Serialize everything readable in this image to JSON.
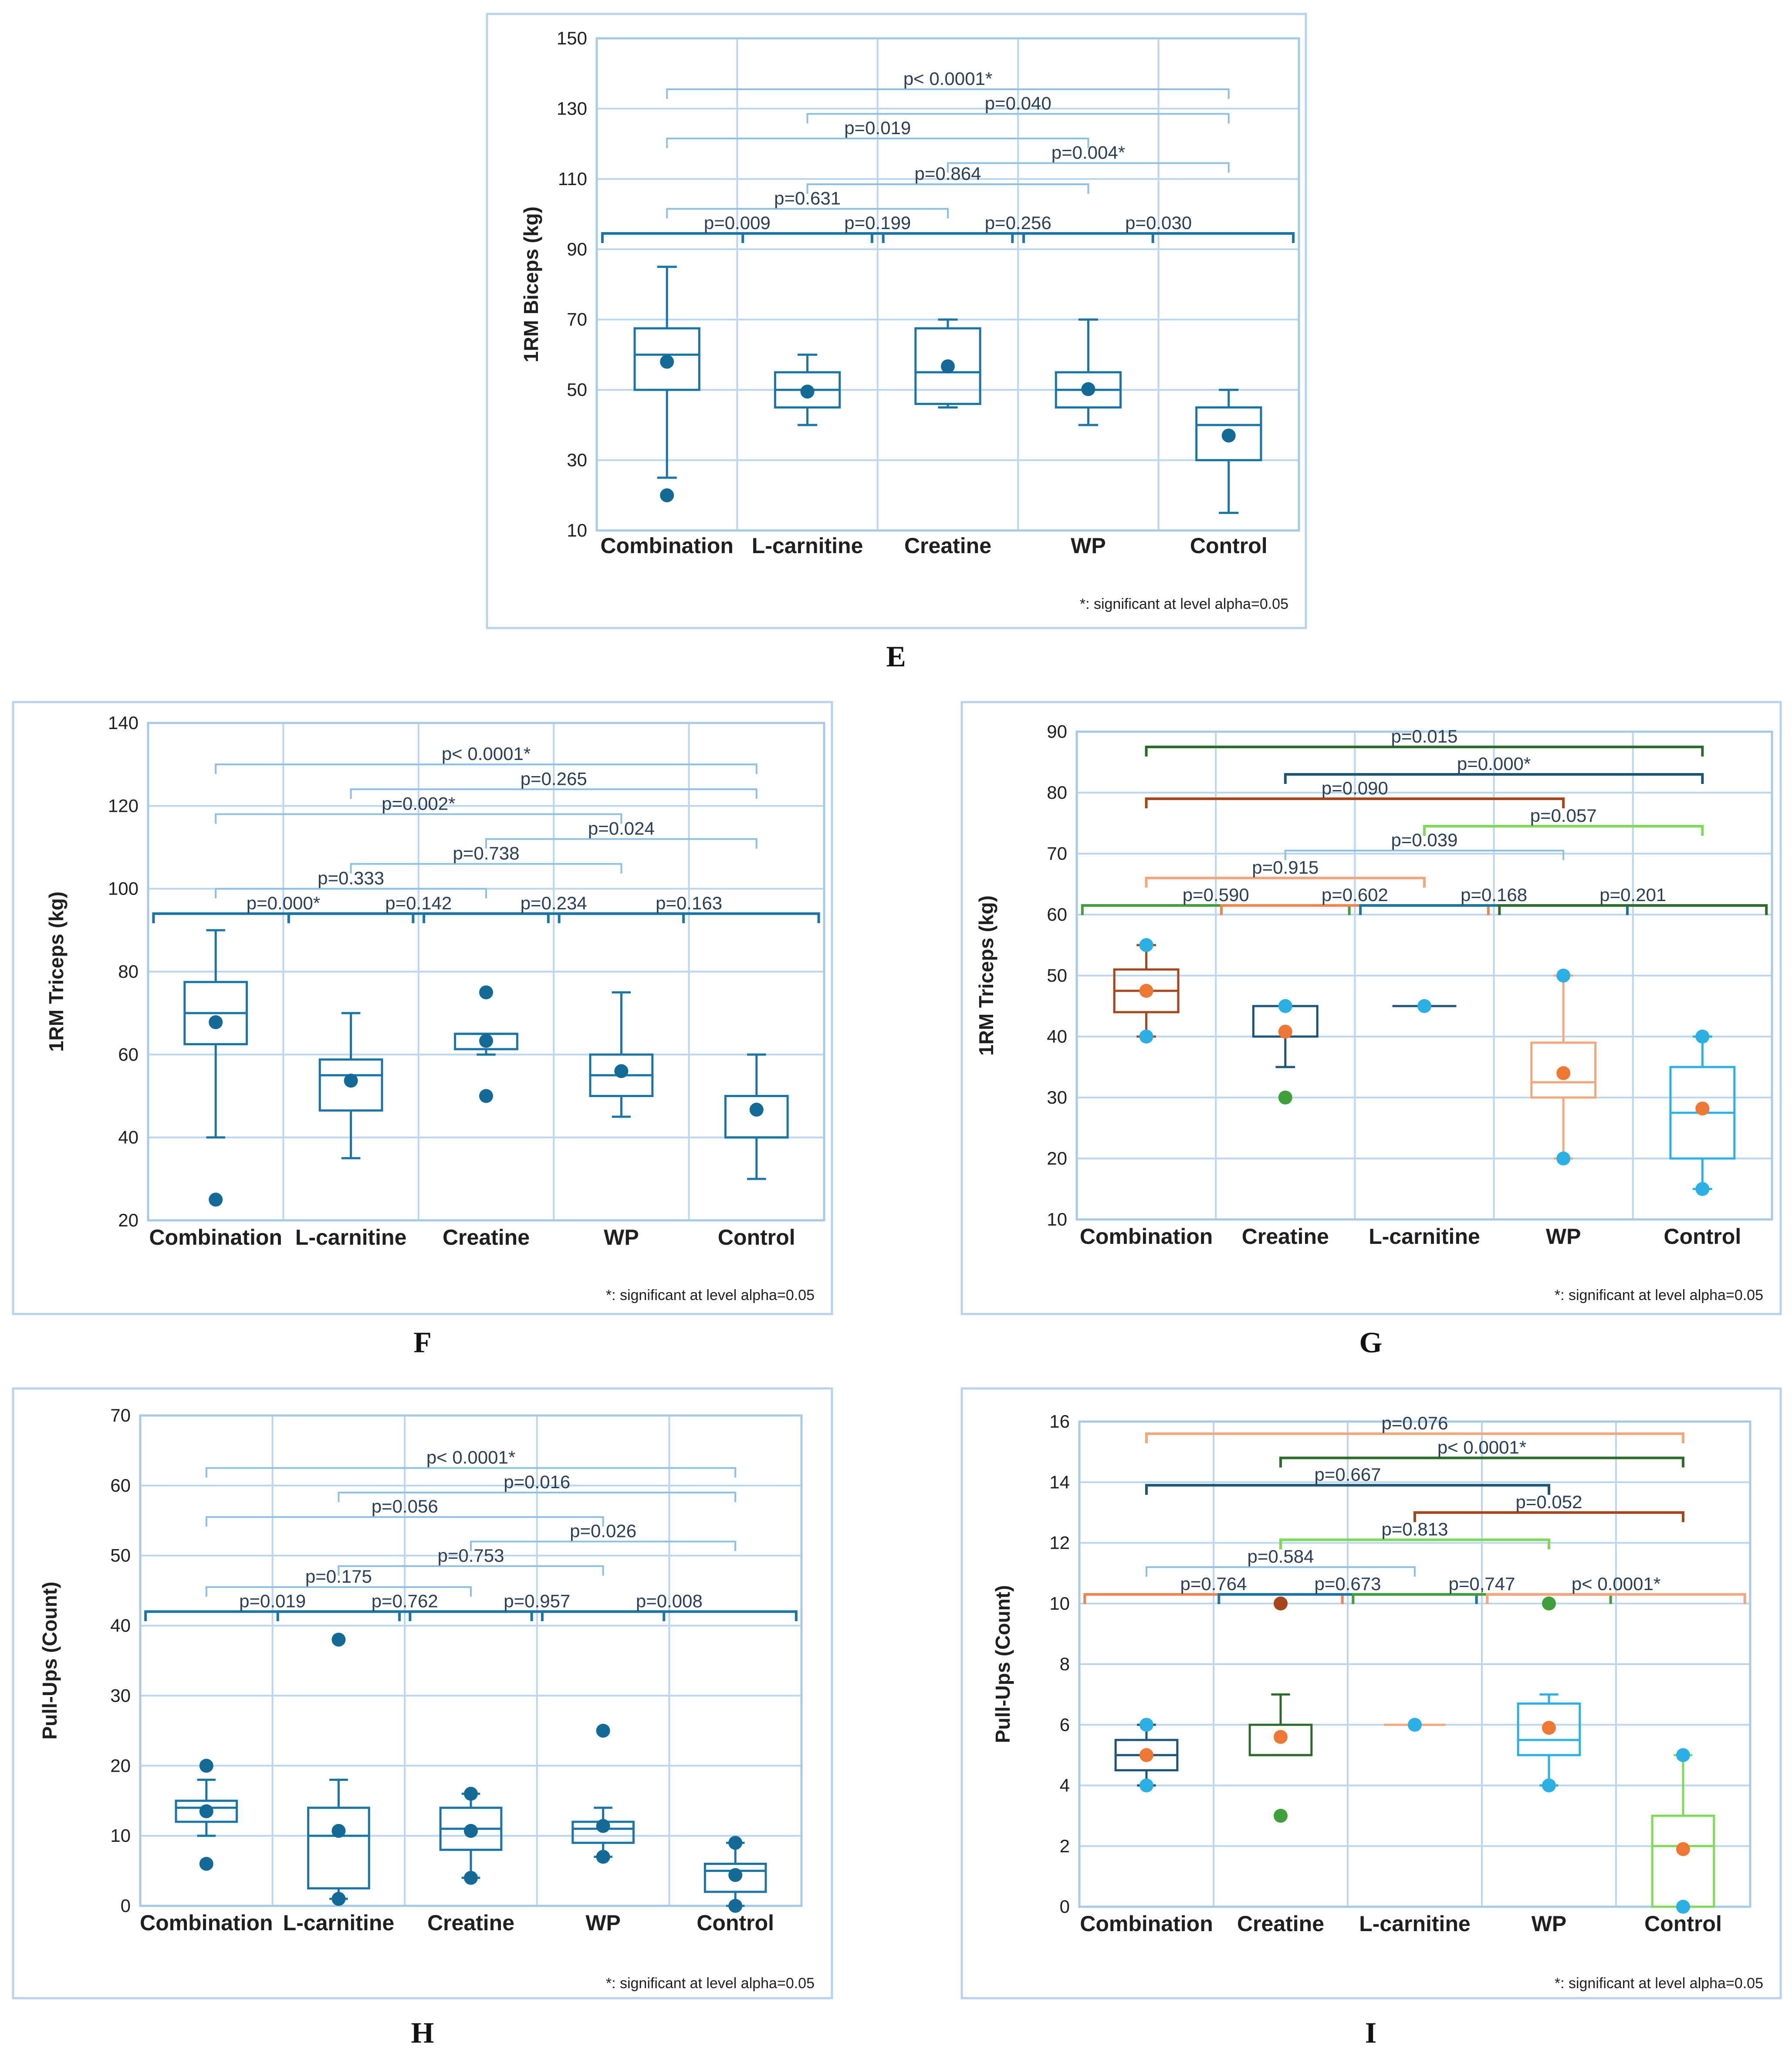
{
  "note": "*: significant at level alpha=0.05",
  "colors": {
    "teal": "#1a74a6",
    "teal_dot": "#146a96",
    "light_blue": "#8cc0e4",
    "dark_navy": "#1c5577",
    "brown": "#a64519",
    "orange": "#f0834c",
    "light_orange": "#f4a77c",
    "cyan": "#2bb0e6",
    "green": "#3f9f3a",
    "dark_green": "#2d6b2a",
    "lime": "#7ed957",
    "dot_orange": "#ee7733"
  },
  "chart_data": [
    {
      "id": "E",
      "type": "box",
      "panel_label": "E",
      "ylabel": "1RM Biceps (kg)",
      "ylim": [
        10,
        150
      ],
      "yticks": [
        10,
        30,
        50,
        70,
        90,
        110,
        130,
        150
      ],
      "categories": [
        "Combination",
        "L-carnitine",
        "Creatine",
        "WP",
        "Control"
      ],
      "boxes": [
        {
          "q1": 50,
          "median": 60,
          "q3": 67.5,
          "whisker_low": 25,
          "whisker_high": 85,
          "mean": 58,
          "outliers": [
            20
          ],
          "color": "teal"
        },
        {
          "q1": 45,
          "median": 50,
          "q3": 55,
          "whisker_low": 40,
          "whisker_high": 60,
          "mean": 49.5,
          "outliers": [],
          "color": "teal"
        },
        {
          "q1": 46,
          "median": 55,
          "q3": 67.5,
          "whisker_low": 45,
          "whisker_high": 70,
          "mean": 56.7,
          "outliers": [],
          "color": "teal"
        },
        {
          "q1": 45,
          "median": 50,
          "q3": 55,
          "whisker_low": 40,
          "whisker_high": 70,
          "mean": 50.2,
          "outliers": [],
          "color": "teal"
        },
        {
          "q1": 30,
          "median": 40,
          "q3": 45,
          "whisker_low": 15,
          "whisker_high": 50,
          "mean": 37,
          "outliers": [],
          "color": "teal"
        }
      ],
      "comparisons": [
        {
          "from": 0,
          "to": 1,
          "level": 94.5,
          "label": "p=0.009",
          "color": "teal"
        },
        {
          "from": 1,
          "to": 2,
          "level": 94.5,
          "label": "p=0.199",
          "color": "teal"
        },
        {
          "from": 2,
          "to": 3,
          "level": 94.5,
          "label": "p=0.256",
          "color": "teal"
        },
        {
          "from": 3,
          "to": 4,
          "level": 94.5,
          "label": "p=0.030",
          "color": "teal"
        },
        {
          "from": 0,
          "to": 2,
          "level": 101.5,
          "label": "p=0.631",
          "color": "light_blue"
        },
        {
          "from": 1,
          "to": 3,
          "level": 108.5,
          "label": "p=0.864",
          "color": "light_blue"
        },
        {
          "from": 2,
          "to": 4,
          "level": 114.5,
          "label": "p=0.004*",
          "color": "light_blue"
        },
        {
          "from": 0,
          "to": 3,
          "level": 121.5,
          "label": "p=0.019",
          "color": "light_blue"
        },
        {
          "from": 1,
          "to": 4,
          "level": 128.5,
          "label": "p=0.040",
          "color": "light_blue"
        },
        {
          "from": 0,
          "to": 4,
          "level": 135.5,
          "label": "p< 0.0001*",
          "color": "light_blue"
        }
      ]
    },
    {
      "id": "F",
      "type": "box",
      "panel_label": "F",
      "ylabel": "1RM Triceps (kg)",
      "ylim": [
        20,
        140
      ],
      "yticks": [
        20,
        40,
        60,
        80,
        100,
        120,
        140
      ],
      "categories": [
        "Combination",
        "L-carnitine",
        "Creatine",
        "WP",
        "Control"
      ],
      "boxes": [
        {
          "q1": 62.5,
          "median": 70,
          "q3": 77.5,
          "whisker_low": 40,
          "whisker_high": 90,
          "mean": 67.8,
          "outliers": [
            25
          ],
          "color": "teal"
        },
        {
          "q1": 46.5,
          "median": 55,
          "q3": 58.8,
          "whisker_low": 35,
          "whisker_high": 70,
          "mean": 53.7,
          "outliers": [],
          "color": "teal"
        },
        {
          "q1": 61.3,
          "median": 65,
          "q3": 65,
          "whisker_low": 60,
          "whisker_high": 65,
          "mean": 63.3,
          "outliers": [
            75,
            50
          ],
          "color": "teal"
        },
        {
          "q1": 50,
          "median": 55,
          "q3": 60,
          "whisker_low": 45,
          "whisker_high": 75,
          "mean": 56,
          "outliers": [],
          "color": "teal"
        },
        {
          "q1": 40,
          "median": 40,
          "q3": 50,
          "whisker_low": 30,
          "whisker_high": 60,
          "mean": 46.7,
          "outliers": [],
          "color": "teal"
        }
      ],
      "comparisons": [
        {
          "from": 0,
          "to": 1,
          "level": 94,
          "label": "p=0.000*",
          "color": "teal"
        },
        {
          "from": 1,
          "to": 2,
          "level": 94,
          "label": "p=0.142",
          "color": "teal"
        },
        {
          "from": 2,
          "to": 3,
          "level": 94,
          "label": "p=0.234",
          "color": "teal"
        },
        {
          "from": 3,
          "to": 4,
          "level": 94,
          "label": "p=0.163",
          "color": "teal"
        },
        {
          "from": 0,
          "to": 2,
          "level": 100,
          "label": "p=0.333",
          "color": "light_blue"
        },
        {
          "from": 1,
          "to": 3,
          "level": 106,
          "label": "p=0.738",
          "color": "light_blue"
        },
        {
          "from": 2,
          "to": 4,
          "level": 112,
          "label": "p=0.024",
          "color": "light_blue"
        },
        {
          "from": 0,
          "to": 3,
          "level": 118,
          "label": "p=0.002*",
          "color": "light_blue"
        },
        {
          "from": 1,
          "to": 4,
          "level": 124,
          "label": "p=0.265",
          "color": "light_blue"
        },
        {
          "from": 0,
          "to": 4,
          "level": 130,
          "label": "p< 0.0001*",
          "color": "light_blue"
        }
      ]
    },
    {
      "id": "G",
      "type": "box",
      "panel_label": "G",
      "ylabel": "1RM Triceps (kg)",
      "ylim": [
        10,
        90
      ],
      "yticks": [
        10,
        20,
        30,
        40,
        50,
        60,
        70,
        80,
        90
      ],
      "categories": [
        "Combination",
        "Creatine",
        "L-carnitine",
        "WP",
        "Control"
      ],
      "boxes": [
        {
          "q1": 44,
          "median": 47.5,
          "q3": 51,
          "whisker_low": 40,
          "whisker_high": 55,
          "mean": 47.5,
          "outliers": [
            40,
            55
          ],
          "color": "brown",
          "mean_color": "dot_orange",
          "outlier_color": "cyan"
        },
        {
          "q1": 40,
          "median": 40,
          "q3": 45,
          "whisker_low": 35,
          "whisker_high": 45,
          "mean": 40.8,
          "outliers": [
            45
          ],
          "low_outlier": 30,
          "color": "dark_navy",
          "mean_color": "dot_orange",
          "outlier_color": "cyan",
          "low_outlier_color": "green"
        },
        {
          "q1": 45,
          "median": 45,
          "q3": 45,
          "whisker_low": 45,
          "whisker_high": 45,
          "mean": 45,
          "outliers": [],
          "color": "dark_navy",
          "mean_color": "cyan",
          "outlier_color": "cyan"
        },
        {
          "q1": 30,
          "median": 32.5,
          "q3": 39,
          "whisker_low": 20,
          "whisker_high": 50,
          "mean": 34,
          "outliers": [
            20,
            50
          ],
          "color": "light_orange",
          "mean_color": "dot_orange",
          "outlier_color": "cyan"
        },
        {
          "q1": 20,
          "median": 27.5,
          "q3": 35,
          "whisker_low": 15,
          "whisker_high": 40,
          "mean": 28.2,
          "outliers": [
            15,
            40
          ],
          "color": "cyan",
          "mean_color": "dot_orange",
          "outlier_color": "cyan"
        }
      ],
      "comparisons": [
        {
          "from": 0,
          "to": 1,
          "level": 61.5,
          "label": "p=0.590",
          "color": "green"
        },
        {
          "from": 1,
          "to": 2,
          "level": 61.5,
          "label": "p=0.602",
          "color": "orange"
        },
        {
          "from": 2,
          "to": 3,
          "level": 61.5,
          "label": "p=0.168",
          "color": "teal"
        },
        {
          "from": 3,
          "to": 4,
          "level": 61.5,
          "label": "p=0.201",
          "color": "dark_green"
        },
        {
          "from": 0,
          "to": 2,
          "level": 66,
          "label": "p=0.915",
          "color": "light_orange"
        },
        {
          "from": 1,
          "to": 3,
          "level": 70.5,
          "label": "p=0.039",
          "color": "light_blue"
        },
        {
          "from": 2,
          "to": 4,
          "level": 74.5,
          "label": "p=0.057",
          "color": "lime"
        },
        {
          "from": 0,
          "to": 3,
          "level": 79,
          "label": "p=0.090",
          "color": "brown"
        },
        {
          "from": 1,
          "to": 4,
          "level": 83,
          "label": "p=0.000*",
          "color": "dark_navy"
        },
        {
          "from": 0,
          "to": 4,
          "level": 87.5,
          "label": "p=0.015",
          "color": "dark_green"
        }
      ]
    },
    {
      "id": "H",
      "type": "box",
      "panel_label": "H",
      "ylabel": "Pull-Ups (Count)",
      "ylim": [
        0,
        70
      ],
      "yticks": [
        0,
        10,
        20,
        30,
        40,
        50,
        60,
        70
      ],
      "categories": [
        "Combination",
        "L-carnitine",
        "Creatine",
        "WP",
        "Control"
      ],
      "boxes": [
        {
          "q1": 12,
          "median": 14,
          "q3": 15,
          "whisker_low": 10,
          "whisker_high": 18,
          "mean": 13.5,
          "outliers": [
            20,
            6
          ],
          "color": "teal"
        },
        {
          "q1": 2.5,
          "median": 10,
          "q3": 14,
          "whisker_low": 1,
          "whisker_high": 18,
          "mean": 10.7,
          "outliers": [
            38,
            1
          ],
          "color": "teal"
        },
        {
          "q1": 8,
          "median": 11,
          "q3": 14,
          "whisker_low": 4,
          "whisker_high": 16,
          "mean": 10.7,
          "outliers": [
            16,
            4
          ],
          "color": "teal"
        },
        {
          "q1": 9,
          "median": 11,
          "q3": 12,
          "whisker_low": 7,
          "whisker_high": 14,
          "mean": 11.4,
          "outliers": [
            25,
            7
          ],
          "color": "teal"
        },
        {
          "q1": 2,
          "median": 5,
          "q3": 6,
          "whisker_low": 0,
          "whisker_high": 9,
          "mean": 4.4,
          "outliers": [
            9,
            0
          ],
          "color": "teal"
        }
      ],
      "comparisons": [
        {
          "from": 0,
          "to": 1,
          "level": 42,
          "label": "p=0.019",
          "color": "teal"
        },
        {
          "from": 1,
          "to": 2,
          "level": 42,
          "label": "p=0.762",
          "color": "teal"
        },
        {
          "from": 2,
          "to": 3,
          "level": 42,
          "label": "p=0.957",
          "color": "teal"
        },
        {
          "from": 3,
          "to": 4,
          "level": 42,
          "label": "p=0.008",
          "color": "teal"
        },
        {
          "from": 0,
          "to": 2,
          "level": 45.5,
          "label": "p=0.175",
          "color": "light_blue"
        },
        {
          "from": 1,
          "to": 3,
          "level": 48.5,
          "label": "p=0.753",
          "color": "light_blue"
        },
        {
          "from": 2,
          "to": 4,
          "level": 52,
          "label": "p=0.026",
          "color": "light_blue"
        },
        {
          "from": 0,
          "to": 3,
          "level": 55.5,
          "label": "p=0.056",
          "color": "light_blue"
        },
        {
          "from": 1,
          "to": 4,
          "level": 59,
          "label": "p=0.016",
          "color": "light_blue"
        },
        {
          "from": 0,
          "to": 4,
          "level": 62.5,
          "label": "p< 0.0001*",
          "color": "light_blue"
        }
      ]
    },
    {
      "id": "I",
      "type": "box",
      "panel_label": "I",
      "ylabel": "Pull-Ups (Count)",
      "ylim": [
        0,
        16
      ],
      "yticks": [
        0,
        2,
        4,
        6,
        8,
        10,
        12,
        14,
        16
      ],
      "categories": [
        "Combination",
        "Creatine",
        "L-carnitine",
        "WP",
        "Control"
      ],
      "boxes": [
        {
          "q1": 4.5,
          "median": 5,
          "q3": 5.5,
          "whisker_low": 4,
          "whisker_high": 6,
          "mean": 5,
          "outliers": [
            4,
            6
          ],
          "color": "dark_navy",
          "mean_color": "dot_orange",
          "outlier_color": "cyan"
        },
        {
          "q1": 5,
          "median": 5,
          "q3": 6,
          "whisker_low": 5,
          "whisker_high": 7,
          "mean": 5.6,
          "outliers": [
            10
          ],
          "low_outlier": 3,
          "color": "dark_green",
          "mean_color": "dot_orange",
          "outlier_color": "brown",
          "low_outlier_color": "green"
        },
        {
          "q1": 6,
          "median": 6,
          "q3": 6,
          "whisker_low": 6,
          "whisker_high": 6,
          "mean": 6,
          "outliers": [],
          "color": "light_orange",
          "mean_color": "cyan",
          "outlier_color": "cyan"
        },
        {
          "q1": 5,
          "median": 5.5,
          "q3": 6.7,
          "whisker_low": 4,
          "whisker_high": 7,
          "mean": 5.9,
          "outliers": [
            4
          ],
          "high_outlier": 10,
          "color": "cyan",
          "mean_color": "dot_orange",
          "outlier_color": "cyan",
          "high_outlier_color": "green"
        },
        {
          "q1": 0,
          "median": 2,
          "q3": 3,
          "whisker_low": 0,
          "whisker_high": 5,
          "mean": 1.9,
          "outliers": [
            0,
            5
          ],
          "color": "lime",
          "mean_color": "dot_orange",
          "outlier_color": "cyan"
        }
      ],
      "comparisons": [
        {
          "from": 0,
          "to": 1,
          "level": 10.3,
          "label": "p=0.764",
          "color": "orange"
        },
        {
          "from": 1,
          "to": 2,
          "level": 10.3,
          "label": "p=0.673",
          "color": "teal"
        },
        {
          "from": 2,
          "to": 3,
          "level": 10.3,
          "label": "p=0,747",
          "color": "green"
        },
        {
          "from": 3,
          "to": 4,
          "level": 10.3,
          "label": "p< 0.0001*",
          "color": "light_orange"
        },
        {
          "from": 0,
          "to": 2,
          "level": 11.2,
          "label": "p=0.584",
          "color": "light_blue"
        },
        {
          "from": 1,
          "to": 3,
          "level": 12.1,
          "label": "p=0.813",
          "color": "lime"
        },
        {
          "from": 2,
          "to": 4,
          "level": 13,
          "label": "p=0.052",
          "color": "brown"
        },
        {
          "from": 0,
          "to": 3,
          "level": 13.9,
          "label": "p=0.667",
          "color": "dark_navy"
        },
        {
          "from": 1,
          "to": 4,
          "level": 14.8,
          "label": "p< 0.0001*",
          "color": "dark_green"
        },
        {
          "from": 0,
          "to": 4,
          "level": 15.6,
          "label": "p=0.076",
          "color": "light_orange"
        }
      ]
    }
  ]
}
